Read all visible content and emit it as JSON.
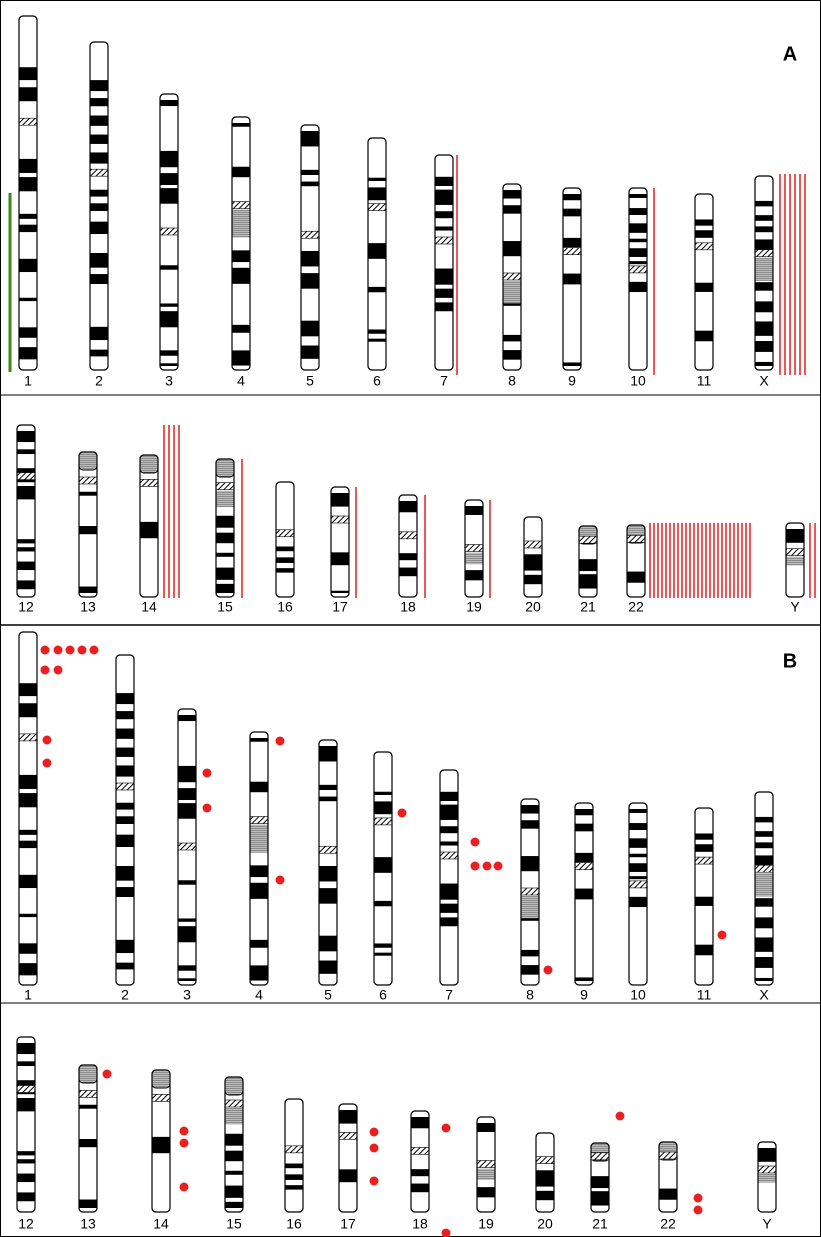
{
  "panels": [
    {
      "label": "A",
      "rows": [
        [
          "1",
          "2",
          "3",
          "4",
          "5",
          "6",
          "7",
          "8",
          "9",
          "10",
          "11",
          "X"
        ],
        [
          "12",
          "13",
          "14",
          "15",
          "16",
          "17",
          "18",
          "19",
          "20",
          "21",
          "22",
          "Y"
        ]
      ]
    },
    {
      "label": "B",
      "rows": [
        [
          "1",
          "2",
          "3",
          "4",
          "5",
          "6",
          "7",
          "8",
          "9",
          "10",
          "11",
          "X"
        ],
        [
          "12",
          "13",
          "14",
          "15",
          "16",
          "17",
          "18",
          "19",
          "20",
          "21",
          "22",
          "Y"
        ]
      ]
    }
  ]
}
